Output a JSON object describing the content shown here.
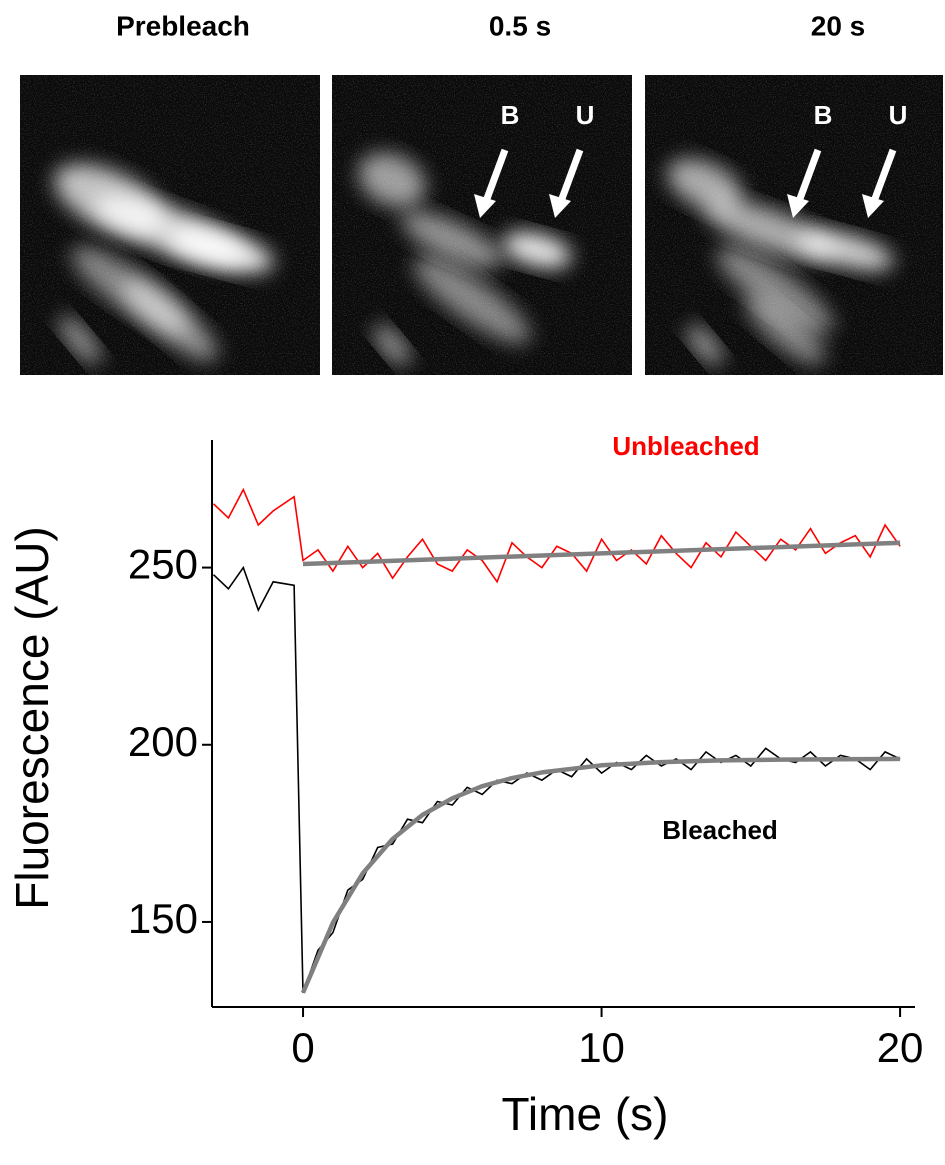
{
  "panels": [
    {
      "title": "Prebleach",
      "labels": []
    },
    {
      "title": "0.5 s",
      "labels": [
        "B",
        "U"
      ]
    },
    {
      "title": "20 s",
      "labels": [
        "B",
        "U"
      ]
    }
  ],
  "chart_data": {
    "type": "line",
    "xlabel": "Time (s)",
    "ylabel": "Fluorescence (AU)",
    "x": [
      -3,
      -2.5,
      -2,
      -1.5,
      -1,
      -0.3,
      0,
      0.5,
      1,
      1.5,
      2,
      2.5,
      3,
      3.5,
      4,
      4.5,
      5,
      5.5,
      6,
      6.5,
      7,
      7.5,
      8,
      8.5,
      9,
      9.5,
      10,
      10.5,
      11,
      11.5,
      12,
      12.5,
      13,
      13.5,
      14,
      14.5,
      15,
      15.5,
      16,
      16.5,
      17,
      17.5,
      18,
      18.5,
      19,
      19.5,
      20
    ],
    "series": [
      {
        "name": "Unbleached",
        "color": "#ff0000",
        "values": [
          268,
          264,
          272,
          262,
          266,
          270,
          252,
          255,
          249,
          256,
          250,
          254,
          247,
          253,
          258,
          251,
          249,
          255,
          252,
          246,
          257,
          253,
          250,
          256,
          254,
          249,
          258,
          252,
          255,
          251,
          259,
          254,
          250,
          257,
          253,
          260,
          256,
          252,
          258,
          255,
          261,
          254,
          257,
          259,
          253,
          262,
          256
        ]
      },
      {
        "name": "Bleached",
        "color": "#000000",
        "values": [
          248,
          244,
          250,
          238,
          246,
          245,
          130,
          142,
          147,
          159,
          162,
          171,
          172,
          179,
          178,
          184,
          183,
          188,
          186,
          190,
          189,
          192,
          190,
          193,
          191,
          196,
          192,
          195,
          193,
          197,
          194,
          196,
          193,
          198,
          195,
          197,
          194,
          199,
          196,
          195,
          198,
          194,
          197,
          196,
          193,
          198,
          196
        ]
      }
    ],
    "fit_lines": [
      {
        "color": "#808080",
        "x": [
          0,
          20
        ],
        "values": [
          251,
          257
        ]
      },
      {
        "color": "#808080",
        "x": [
          0,
          1,
          2,
          3,
          4,
          5,
          6,
          7,
          8,
          10,
          12,
          14,
          16,
          18,
          20
        ],
        "values": [
          130,
          149.8,
          163.7,
          173.4,
          180.2,
          184.9,
          188.3,
          190.6,
          192.2,
          194.2,
          195.1,
          195.6,
          195.8,
          195.9,
          196
        ]
      }
    ],
    "xlim": [
      -3.05,
      20.5
    ],
    "ylim": [
      126,
      286
    ],
    "xticks": [
      0,
      10,
      20
    ],
    "yticks": [
      150,
      200,
      250
    ]
  }
}
